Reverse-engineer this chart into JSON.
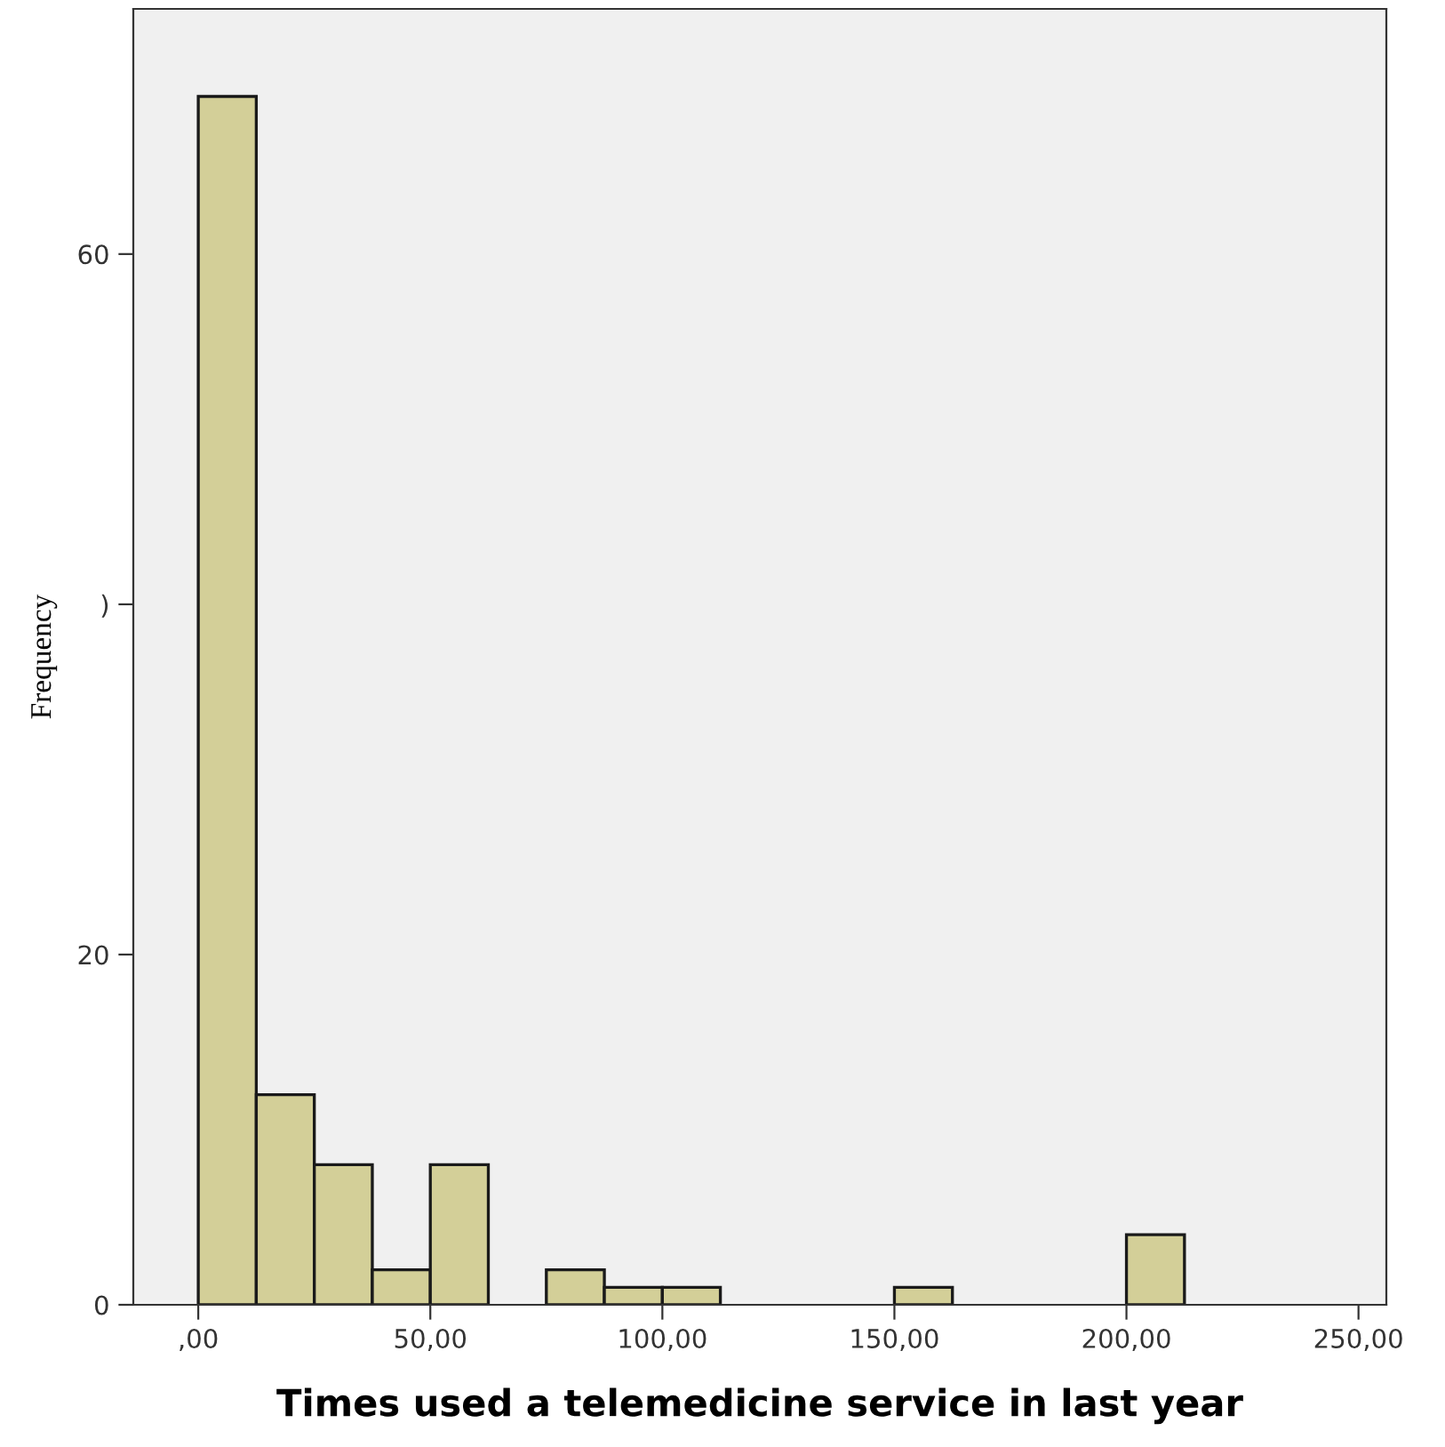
{
  "chart_data": {
    "type": "histogram",
    "xlabel": "Times used a telemedicine service in last year",
    "ylabel": "Frequency",
    "bins": [
      0,
      12.5,
      25,
      37.5,
      50,
      62.5,
      75,
      87.5,
      100,
      112.5,
      125,
      137.5,
      150,
      162.5,
      175,
      187.5,
      200,
      212.5
    ],
    "values": [
      69,
      12,
      8,
      2,
      8,
      0,
      2,
      1,
      1,
      0,
      0,
      0,
      1,
      0,
      0,
      0,
      4
    ],
    "color": "#d3cf98",
    "xlim": [
      -14,
      256
    ],
    "xticks": [
      {
        "value": 0,
        "label": ",00"
      },
      {
        "value": 50,
        "label": "50,00"
      },
      {
        "value": 100,
        "label": "100,00"
      },
      {
        "value": 150,
        "label": "150,00"
      },
      {
        "value": 200,
        "label": "200,00"
      },
      {
        "value": 250,
        "label": "250,00"
      }
    ],
    "ylim": [
      0,
      74
    ],
    "yticks": [
      0,
      20,
      {
        "value": 40,
        "label": ")"
      },
      60
    ],
    "grid": false
  }
}
